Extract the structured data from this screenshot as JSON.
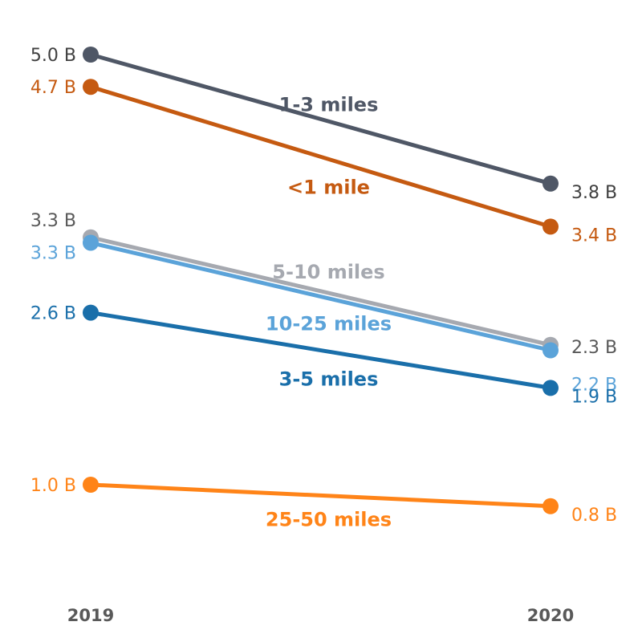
{
  "chart_data": {
    "type": "line",
    "x": [
      "2019",
      "2020"
    ],
    "series": [
      {
        "name": "1-3 miles",
        "values": [
          5.0,
          3.8
        ],
        "labels": [
          "5.0 B",
          "3.8 B"
        ],
        "color": "#4f5766"
      },
      {
        "name": "<1 mile",
        "values": [
          4.7,
          3.4
        ],
        "labels": [
          "4.7 B",
          "3.4 B"
        ],
        "color": "#c55a11"
      },
      {
        "name": "5-10 miles",
        "values": [
          3.3,
          2.3
        ],
        "labels": [
          "3.3 B",
          "2.3 B"
        ],
        "color": "#a6a9b0"
      },
      {
        "name": "10-25 miles",
        "values": [
          3.25,
          2.25
        ],
        "labels": [
          "3.3 B",
          "2.2 B"
        ],
        "color": "#5ba3d9"
      },
      {
        "name": "3-5 miles",
        "values": [
          2.6,
          1.9
        ],
        "labels": [
          "2.6 B",
          "1.9 B"
        ],
        "color": "#1a6faa"
      },
      {
        "name": "25-50 miles",
        "values": [
          1.0,
          0.8
        ],
        "labels": [
          "1.0 B",
          "0.8 B"
        ],
        "color": "#ff8418"
      }
    ],
    "title": "",
    "xlabel": "",
    "ylabel": "",
    "ylim": [
      0,
      5
    ],
    "grid": false,
    "legend": "inline labels"
  }
}
